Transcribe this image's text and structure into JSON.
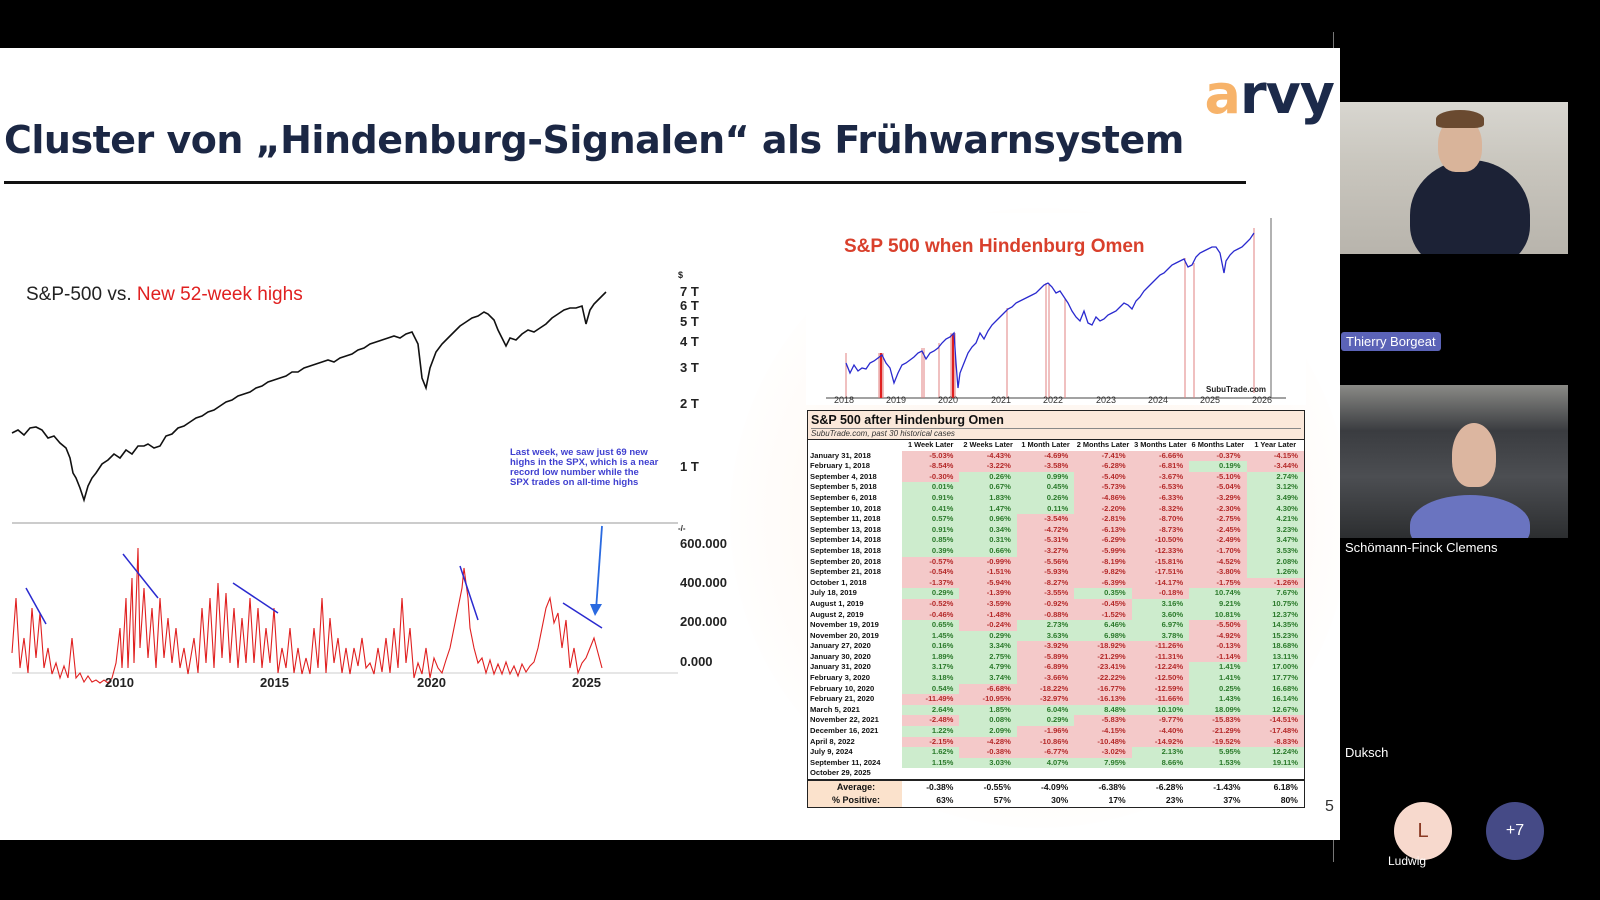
{
  "slide": {
    "logo": {
      "a": "a",
      "rest": "rvy"
    },
    "title": "Cluster von „Hindenburg-Signalen“ als Frühwarnsystem",
    "page_number": "5",
    "left_chart": {
      "title_black": "S&P-500 vs. ",
      "title_red": "New 52-week highs",
      "price_axis_unit": "$",
      "price_ticks": [
        "7 T",
        "6 T",
        "5 T",
        "4 T",
        "3 T",
        "2 T",
        "1 T"
      ],
      "highs_axis_unit": "-/-",
      "highs_ticks": [
        "600.000",
        "400.000",
        "200.000",
        "0.000"
      ],
      "x_ticks": [
        "2010",
        "2015",
        "2020",
        "2025"
      ],
      "annotation": "Last week, we saw just 69 new highs in the SPX, which is a near record low number while the SPX trades on all-time highs"
    },
    "right_chart": {
      "title": "S&P 500 when Hindenburg Omen",
      "source": "SubuTrade.com",
      "x_ticks": [
        "2018",
        "2019",
        "2020",
        "2021",
        "2022",
        "2023",
        "2024",
        "2025",
        "2026"
      ]
    },
    "table": {
      "title": "S&P 500 after Hindenburg Omen",
      "subtitle": "SubuTrade.com, past 30 historical cases",
      "columns": [
        "1 Week Later",
        "2 Weeks Later",
        "1 Month Later",
        "2 Months Later",
        "3 Months Later",
        "6 Months Later",
        "1 Year Later"
      ],
      "rows": [
        {
          "date": "January 31, 2018",
          "values": [
            "-5.03%",
            "-4.43%",
            "-4.69%",
            "-7.41%",
            "-6.66%",
            "-0.37%",
            "-4.15%"
          ]
        },
        {
          "date": "February 1, 2018",
          "values": [
            "-8.54%",
            "-3.22%",
            "-3.58%",
            "-6.28%",
            "-6.81%",
            "0.19%",
            "-3.44%"
          ]
        },
        {
          "date": "September 4, 2018",
          "values": [
            "-0.30%",
            "0.26%",
            "0.99%",
            "-5.40%",
            "-3.67%",
            "-5.10%",
            "2.74%"
          ]
        },
        {
          "date": "September 5, 2018",
          "values": [
            "0.01%",
            "0.67%",
            "0.45%",
            "-5.73%",
            "-6.53%",
            "-5.04%",
            "3.12%"
          ]
        },
        {
          "date": "September 6, 2018",
          "values": [
            "0.91%",
            "1.83%",
            "0.26%",
            "-4.86%",
            "-6.33%",
            "-3.29%",
            "3.49%"
          ]
        },
        {
          "date": "September 10, 2018",
          "values": [
            "0.41%",
            "1.47%",
            "0.11%",
            "-2.20%",
            "-8.32%",
            "-2.30%",
            "4.30%"
          ]
        },
        {
          "date": "September 11, 2018",
          "values": [
            "0.57%",
            "0.96%",
            "-3.54%",
            "-2.81%",
            "-8.70%",
            "-2.75%",
            "4.21%"
          ]
        },
        {
          "date": "September 13, 2018",
          "values": [
            "0.91%",
            "0.34%",
            "-4.72%",
            "-6.13%",
            "-8.73%",
            "-2.45%",
            "3.23%"
          ]
        },
        {
          "date": "September 14, 2018",
          "values": [
            "0.85%",
            "0.31%",
            "-5.31%",
            "-6.29%",
            "-10.50%",
            "-2.49%",
            "3.47%"
          ]
        },
        {
          "date": "September 18, 2018",
          "values": [
            "0.39%",
            "0.66%",
            "-3.27%",
            "-5.99%",
            "-12.33%",
            "-1.70%",
            "3.53%"
          ]
        },
        {
          "date": "September 20, 2018",
          "values": [
            "-0.57%",
            "-0.99%",
            "-5.56%",
            "-8.19%",
            "-15.81%",
            "-4.52%",
            "2.08%"
          ]
        },
        {
          "date": "September 21, 2018",
          "values": [
            "-0.54%",
            "-1.51%",
            "-5.93%",
            "-9.82%",
            "-17.51%",
            "-3.80%",
            "1.26%"
          ]
        },
        {
          "date": "October 1, 2018",
          "values": [
            "-1.37%",
            "-5.94%",
            "-8.27%",
            "-6.39%",
            "-14.17%",
            "-1.75%",
            "-1.26%"
          ]
        },
        {
          "date": "July 18, 2019",
          "values": [
            "0.29%",
            "-1.39%",
            "-3.55%",
            "0.35%",
            "-0.18%",
            "10.74%",
            "7.67%"
          ]
        },
        {
          "date": "August 1, 2019",
          "values": [
            "-0.52%",
            "-3.59%",
            "-0.92%",
            "-0.45%",
            "3.16%",
            "9.21%",
            "10.75%"
          ]
        },
        {
          "date": "August 2, 2019",
          "values": [
            "-0.46%",
            "-1.48%",
            "-0.88%",
            "-1.52%",
            "3.60%",
            "10.81%",
            "12.37%"
          ]
        },
        {
          "date": "November 19, 2019",
          "values": [
            "0.65%",
            "-0.24%",
            "2.73%",
            "6.46%",
            "6.97%",
            "-5.50%",
            "14.35%"
          ]
        },
        {
          "date": "November 20, 2019",
          "values": [
            "1.45%",
            "0.29%",
            "3.63%",
            "6.98%",
            "3.78%",
            "-4.92%",
            "15.23%"
          ]
        },
        {
          "date": "January 27, 2020",
          "values": [
            "0.16%",
            "3.34%",
            "-3.92%",
            "-18.92%",
            "-11.26%",
            "-0.13%",
            "18.68%"
          ]
        },
        {
          "date": "January 30, 2020",
          "values": [
            "1.89%",
            "2.75%",
            "-5.89%",
            "-21.29%",
            "-11.31%",
            "-1.14%",
            "13.11%"
          ]
        },
        {
          "date": "January 31, 2020",
          "values": [
            "3.17%",
            "4.79%",
            "-6.89%",
            "-23.41%",
            "-12.24%",
            "1.41%",
            "17.00%"
          ]
        },
        {
          "date": "February 3, 2020",
          "values": [
            "3.18%",
            "3.74%",
            "-3.66%",
            "-22.22%",
            "-12.50%",
            "1.41%",
            "17.77%"
          ]
        },
        {
          "date": "February 10, 2020",
          "values": [
            "0.54%",
            "-6.68%",
            "-18.22%",
            "-16.77%",
            "-12.59%",
            "0.25%",
            "16.68%"
          ]
        },
        {
          "date": "February 21, 2020",
          "values": [
            "-11.49%",
            "-10.95%",
            "-32.97%",
            "-16.13%",
            "-11.66%",
            "1.43%",
            "16.14%"
          ]
        },
        {
          "date": "March 5, 2021",
          "values": [
            "2.64%",
            "1.85%",
            "6.04%",
            "8.48%",
            "10.10%",
            "18.09%",
            "12.67%"
          ]
        },
        {
          "date": "November 22, 2021",
          "values": [
            "-2.48%",
            "0.08%",
            "0.29%",
            "-5.83%",
            "-9.77%",
            "-15.83%",
            "-14.51%"
          ]
        },
        {
          "date": "December 16, 2021",
          "values": [
            "1.22%",
            "2.09%",
            "-1.96%",
            "-4.15%",
            "-4.40%",
            "-21.29%",
            "-17.48%"
          ]
        },
        {
          "date": "April 8, 2022",
          "values": [
            "-2.15%",
            "-4.28%",
            "-10.86%",
            "-10.48%",
            "-14.92%",
            "-19.52%",
            "-8.83%"
          ]
        },
        {
          "date": "July 9, 2024",
          "values": [
            "1.62%",
            "-0.38%",
            "-6.77%",
            "-3.02%",
            "2.13%",
            "5.95%",
            "12.24%"
          ]
        },
        {
          "date": "September 11, 2024",
          "values": [
            "1.15%",
            "3.03%",
            "4.07%",
            "7.95%",
            "8.66%",
            "1.53%",
            "19.11%"
          ]
        },
        {
          "date": "October 29, 2025",
          "values": [
            "",
            "",
            "",
            "",
            "",
            "",
            ""
          ]
        }
      ],
      "average_label": "Average:",
      "average": [
        "-0.38%",
        "-0.55%",
        "-4.09%",
        "-6.38%",
        "-6.28%",
        "-1.43%",
        "6.18%"
      ],
      "positive_label": "% Positive:",
      "positive": [
        "63%",
        "57%",
        "30%",
        "17%",
        "23%",
        "37%",
        "80%"
      ]
    }
  },
  "participants": {
    "p1": {
      "name": "Thierry Borgeat"
    },
    "p2": {
      "name": "Schömann-Finck Clemens"
    },
    "p3": {
      "name": "Duksch"
    },
    "p4": {
      "name": "Ludwig",
      "initial": "L"
    },
    "more": {
      "label": "+7"
    }
  },
  "colors": {
    "title_navy": "#1b2744",
    "logo_orange": "#f7b36a",
    "logo_navy": "#1c2a4a",
    "highs_red": "#e02020",
    "omen_blue": "#2a2acf",
    "neg_cell": "#f4c9c9",
    "pos_cell": "#cdeccd",
    "name_tag": "#5b63b7",
    "more_avatar": "#454a86"
  }
}
